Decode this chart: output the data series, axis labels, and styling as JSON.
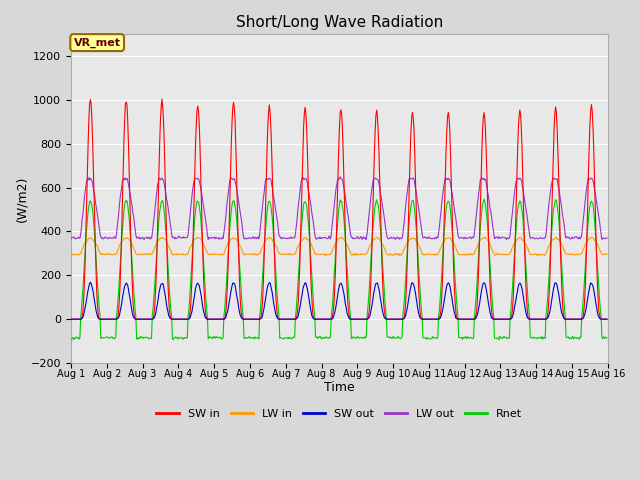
{
  "title": "Short/Long Wave Radiation",
  "xlabel": "Time",
  "ylabel": "(W/m2)",
  "ylim": [
    -200,
    1300
  ],
  "yticks": [
    -200,
    0,
    200,
    400,
    600,
    800,
    1000,
    1200
  ],
  "n_days": 15,
  "sw_in_peak": [
    1005,
    1000,
    997,
    975,
    990,
    970,
    960,
    955,
    950,
    945,
    945,
    940,
    950,
    960,
    975
  ],
  "lw_in_night": 295,
  "lw_in_day_add": 75,
  "sw_out_peak": 165,
  "lw_out_night": 370,
  "lw_out_day_peak": 640,
  "rnet_day_peak": 540,
  "rnet_night": -85,
  "background_color": "#d8d8d8",
  "plot_bg_color": "#e8e8e8",
  "sw_in_color": "#ff0000",
  "lw_in_color": "#ff9900",
  "sw_out_color": "#0000cc",
  "lw_out_color": "#9933cc",
  "rnet_color": "#00cc00",
  "annotation_text": "VR_met",
  "annotation_bg": "#ffff99",
  "annotation_border": "#996600",
  "grid_color": "#ffffff",
  "day_rise_hour": 6.2,
  "day_set_hour": 19.8,
  "sw_power": 3.5
}
